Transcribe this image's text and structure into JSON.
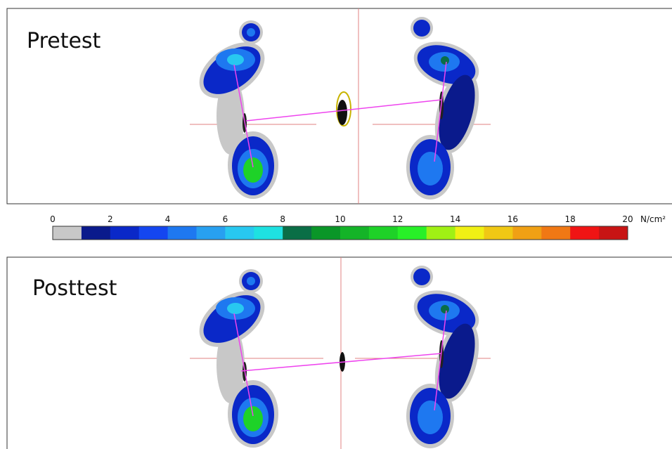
{
  "panels": [
    {
      "label": "Pretest"
    },
    {
      "label": "Posttest"
    }
  ],
  "colorbar": {
    "lim": [
      0,
      20
    ],
    "ticks": [
      0,
      2,
      4,
      6,
      8,
      10,
      12,
      14,
      16,
      18,
      20
    ],
    "unit": "N/cm²",
    "colors": [
      "#c8c8c8",
      "#0a1a8c",
      "#0a28c8",
      "#1446f0",
      "#1e78f0",
      "#28a0f0",
      "#28c8f0",
      "#1ee1e1",
      "#0a6e46",
      "#0a9628",
      "#14b428",
      "#1ed228",
      "#28f028",
      "#a0f014",
      "#f0f014",
      "#f0c814",
      "#f0a014",
      "#f07814",
      "#f01414",
      "#c81414"
    ]
  }
}
